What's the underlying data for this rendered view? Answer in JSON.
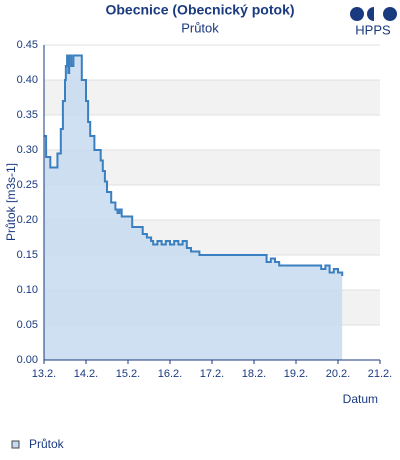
{
  "chart_data": {
    "type": "area",
    "title": "Obecnice (Obecnický potok)",
    "subtitle": "Průtok",
    "logo": "HPPS",
    "y_label": "Průtok [m3s-1]",
    "x_label": "Datum",
    "step": true,
    "grid": true,
    "legend": "bottom-left",
    "xlim": [
      13,
      21
    ],
    "xticks": [
      {
        "value": 13,
        "label": "13.2."
      },
      {
        "value": 14,
        "label": "14.2."
      },
      {
        "value": 15,
        "label": "15.2."
      },
      {
        "value": 16,
        "label": "16.2."
      },
      {
        "value": 17,
        "label": "17.2."
      },
      {
        "value": 18,
        "label": "18.2."
      },
      {
        "value": 19,
        "label": "19.2."
      },
      {
        "value": 20,
        "label": "20.2."
      },
      {
        "value": 21,
        "label": "21.2."
      }
    ],
    "ylim": [
      0,
      0.45
    ],
    "yticks": [
      {
        "value": 0,
        "label": "0.00"
      },
      0.05,
      {
        "value": 0.1,
        "label": "0.10"
      },
      0.15,
      {
        "value": 0.2,
        "label": "0.20"
      },
      0.25,
      {
        "value": 0.3,
        "label": "0.30"
      },
      0.35,
      {
        "value": 0.4,
        "label": "0.40"
      },
      0.45
    ],
    "series": [
      {
        "name": "Průtok",
        "color": "#3a7fc0",
        "fill": "#c5dbef",
        "x": [
          13.0,
          13.05,
          13.15,
          13.3,
          13.32,
          13.4,
          13.45,
          13.5,
          13.52,
          13.55,
          13.58,
          13.6,
          13.65,
          13.7,
          13.85,
          13.9,
          14.0,
          14.05,
          14.1,
          14.2,
          14.35,
          14.4,
          14.45,
          14.5,
          14.6,
          14.7,
          14.75,
          14.8,
          14.85,
          15.0,
          15.1,
          15.25,
          15.35,
          15.45,
          15.55,
          15.6,
          15.7,
          15.8,
          15.9,
          16.0,
          16.1,
          16.2,
          16.3,
          16.4,
          16.5,
          16.7,
          18.2,
          18.3,
          18.4,
          18.5,
          18.6,
          19.5,
          19.6,
          19.7,
          19.8,
          19.9,
          20.0,
          20.1
        ],
        "values": [
          0.32,
          0.29,
          0.275,
          0.275,
          0.295,
          0.33,
          0.37,
          0.4,
          0.42,
          0.435,
          0.41,
          0.435,
          0.42,
          0.435,
          0.435,
          0.4,
          0.37,
          0.34,
          0.32,
          0.3,
          0.285,
          0.27,
          0.255,
          0.24,
          0.225,
          0.215,
          0.21,
          0.215,
          0.205,
          0.205,
          0.19,
          0.19,
          0.18,
          0.175,
          0.17,
          0.165,
          0.17,
          0.165,
          0.17,
          0.165,
          0.17,
          0.165,
          0.17,
          0.16,
          0.155,
          0.15,
          0.15,
          0.14,
          0.145,
          0.14,
          0.135,
          0.135,
          0.13,
          0.135,
          0.125,
          0.13,
          0.125,
          0.12
        ]
      }
    ]
  }
}
